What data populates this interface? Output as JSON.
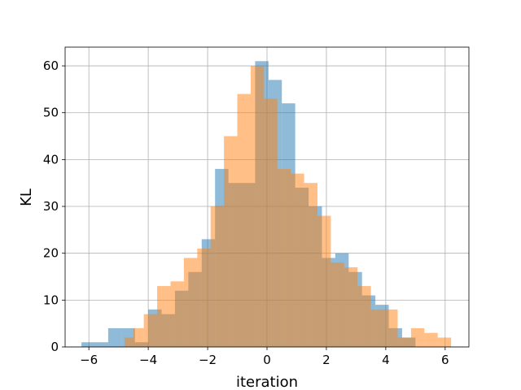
{
  "chart_data": {
    "type": "histogram",
    "title": "",
    "xlabel": "iteration",
    "ylabel": "KL",
    "xlim": [
      -6.8,
      6.8
    ],
    "ylim": [
      0,
      64
    ],
    "xticks": [
      -6,
      -4,
      -2,
      0,
      2,
      4,
      6
    ],
    "yticks": [
      0,
      10,
      20,
      30,
      40,
      50,
      60
    ],
    "grid": true,
    "series": [
      {
        "color": "#1f77b4",
        "alpha": 0.5,
        "bins": [
          {
            "x0": -6.25,
            "x1": -5.8,
            "value": 1
          },
          {
            "x0": -5.8,
            "x1": -5.35,
            "value": 1
          },
          {
            "x0": -5.35,
            "x1": -4.9,
            "value": 4
          },
          {
            "x0": -4.9,
            "x1": -4.45,
            "value": 4
          },
          {
            "x0": -4.45,
            "x1": -4.0,
            "value": 1
          },
          {
            "x0": -4.0,
            "x1": -3.55,
            "value": 8
          },
          {
            "x0": -3.55,
            "x1": -3.1,
            "value": 7
          },
          {
            "x0": -3.1,
            "x1": -2.65,
            "value": 12
          },
          {
            "x0": -2.65,
            "x1": -2.2,
            "value": 16
          },
          {
            "x0": -2.2,
            "x1": -1.75,
            "value": 23
          },
          {
            "x0": -1.75,
            "x1": -1.3,
            "value": 38
          },
          {
            "x0": -1.3,
            "x1": -0.85,
            "value": 35
          },
          {
            "x0": -0.85,
            "x1": -0.4,
            "value": 35
          },
          {
            "x0": -0.4,
            "x1": 0.05,
            "value": 61
          },
          {
            "x0": 0.05,
            "x1": 0.5,
            "value": 57
          },
          {
            "x0": 0.5,
            "x1": 0.95,
            "value": 52
          },
          {
            "x0": 0.95,
            "x1": 1.4,
            "value": 34
          },
          {
            "x0": 1.4,
            "x1": 1.85,
            "value": 30
          },
          {
            "x0": 1.85,
            "x1": 2.3,
            "value": 19
          },
          {
            "x0": 2.3,
            "x1": 2.75,
            "value": 20
          },
          {
            "x0": 2.75,
            "x1": 3.2,
            "value": 16
          },
          {
            "x0": 3.2,
            "x1": 3.65,
            "value": 11
          },
          {
            "x0": 3.65,
            "x1": 4.1,
            "value": 9
          },
          {
            "x0": 4.1,
            "x1": 4.55,
            "value": 4
          },
          {
            "x0": 4.55,
            "x1": 5.0,
            "value": 2
          }
        ]
      },
      {
        "color": "#ff7f0e",
        "alpha": 0.5,
        "bins": [
          {
            "x0": -4.8,
            "x1": -4.5,
            "value": 2
          },
          {
            "x0": -4.5,
            "x1": -4.15,
            "value": 4
          },
          {
            "x0": -4.15,
            "x1": -3.7,
            "value": 7
          },
          {
            "x0": -3.7,
            "x1": -3.25,
            "value": 13
          },
          {
            "x0": -3.25,
            "x1": -2.8,
            "value": 14
          },
          {
            "x0": -2.8,
            "x1": -2.35,
            "value": 19
          },
          {
            "x0": -2.35,
            "x1": -1.9,
            "value": 21
          },
          {
            "x0": -1.9,
            "x1": -1.45,
            "value": 30
          },
          {
            "x0": -1.45,
            "x1": -1.0,
            "value": 45
          },
          {
            "x0": -1.0,
            "x1": -0.55,
            "value": 54
          },
          {
            "x0": -0.55,
            "x1": -0.1,
            "value": 60
          },
          {
            "x0": -0.1,
            "x1": 0.35,
            "value": 53
          },
          {
            "x0": 0.35,
            "x1": 0.8,
            "value": 38
          },
          {
            "x0": 0.8,
            "x1": 1.25,
            "value": 37
          },
          {
            "x0": 1.25,
            "x1": 1.7,
            "value": 35
          },
          {
            "x0": 1.7,
            "x1": 2.15,
            "value": 28
          },
          {
            "x0": 2.15,
            "x1": 2.6,
            "value": 18
          },
          {
            "x0": 2.6,
            "x1": 3.05,
            "value": 17
          },
          {
            "x0": 3.05,
            "x1": 3.5,
            "value": 13
          },
          {
            "x0": 3.5,
            "x1": 3.95,
            "value": 8
          },
          {
            "x0": 3.95,
            "x1": 4.4,
            "value": 8
          },
          {
            "x0": 4.4,
            "x1": 4.85,
            "value": 2
          },
          {
            "x0": 4.85,
            "x1": 5.3,
            "value": 4
          },
          {
            "x0": 5.3,
            "x1": 5.75,
            "value": 3
          },
          {
            "x0": 5.75,
            "x1": 6.2,
            "value": 2
          }
        ]
      }
    ]
  }
}
